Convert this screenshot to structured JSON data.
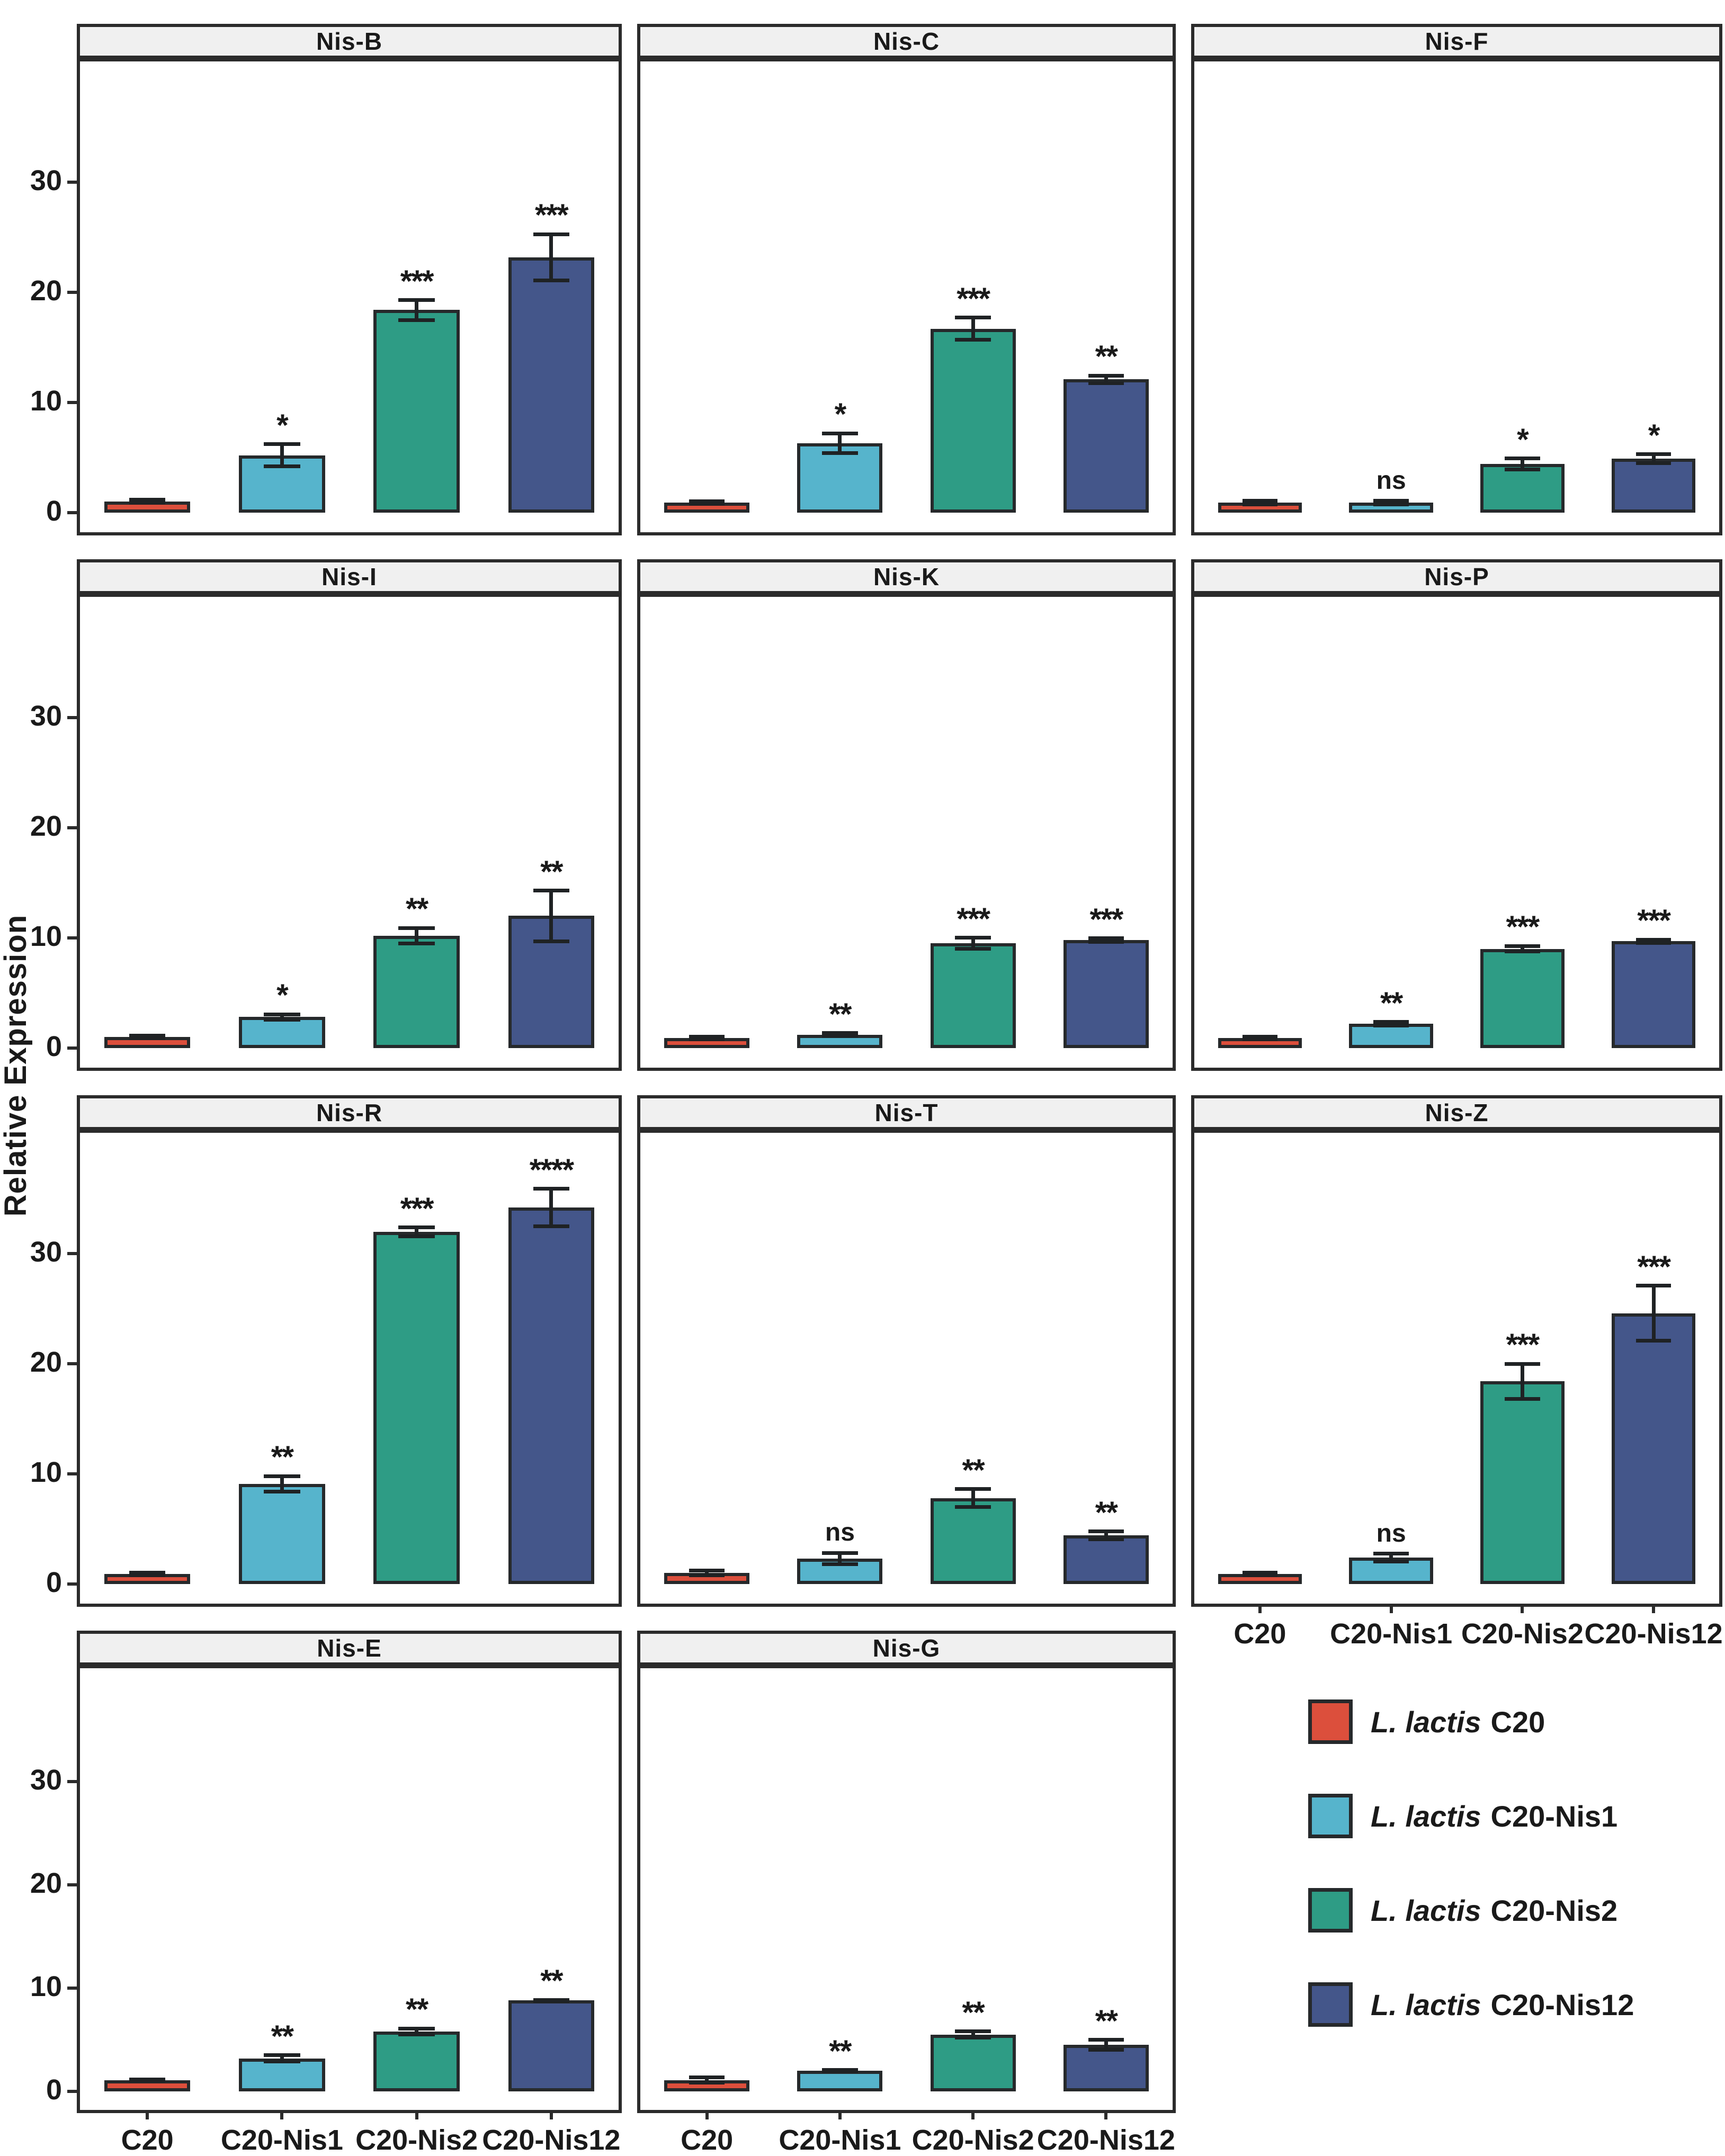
{
  "chart_data": {
    "type": "bar",
    "ylabel": "Relative Expression",
    "categories": [
      "C20",
      "C20-Nis1",
      "C20-Nis2",
      "C20-Nis12"
    ],
    "yticks": [
      0,
      10,
      20,
      30
    ],
    "ylim": [
      -1.8,
      41
    ],
    "grid": "off",
    "legend_position": "bottom-right-cell",
    "group_colors": [
      "#DC4F3C",
      "#56B4CC",
      "#2E9C85",
      "#44568A"
    ],
    "bar_outline_color": "#26292B",
    "panel_border_color": "#2B2B2B",
    "strip_bg_color": "#F0F0F0",
    "text_color": "#1A1A1A",
    "panels": [
      {
        "title": "Nis-B",
        "row": 0,
        "col": 0,
        "show_y_axis": true,
        "show_x_axis": false,
        "values": [
          1.0,
          5.2,
          18.4,
          23.2
        ],
        "errors": [
          0.15,
          1.0,
          0.9,
          2.1
        ],
        "sig": [
          "",
          "*",
          "***",
          "***"
        ]
      },
      {
        "title": "Nis-C",
        "row": 0,
        "col": 1,
        "show_y_axis": false,
        "show_x_axis": false,
        "values": [
          0.9,
          6.3,
          16.7,
          12.1
        ],
        "errors": [
          0.1,
          0.9,
          1.0,
          0.35
        ],
        "sig": [
          "",
          "*",
          "***",
          "**"
        ]
      },
      {
        "title": "Nis-F",
        "row": 0,
        "col": 2,
        "show_y_axis": false,
        "show_x_axis": false,
        "values": [
          0.9,
          0.9,
          4.4,
          4.9
        ],
        "errors": [
          0.15,
          0.15,
          0.5,
          0.4
        ],
        "sig": [
          "",
          "ns",
          "*",
          "*"
        ]
      },
      {
        "title": "Nis-I",
        "row": 1,
        "col": 0,
        "show_y_axis": true,
        "show_x_axis": false,
        "values": [
          1.0,
          2.8,
          10.2,
          12.0
        ],
        "errors": [
          0.12,
          0.25,
          0.7,
          2.3
        ],
        "sig": [
          "",
          "*",
          "**",
          "**"
        ]
      },
      {
        "title": "Nis-K",
        "row": 1,
        "col": 1,
        "show_y_axis": false,
        "show_x_axis": false,
        "values": [
          0.9,
          1.2,
          9.5,
          9.8
        ],
        "errors": [
          0.1,
          0.15,
          0.5,
          0.15
        ],
        "sig": [
          "",
          "**",
          "***",
          "***"
        ]
      },
      {
        "title": "Nis-P",
        "row": 1,
        "col": 2,
        "show_y_axis": false,
        "show_x_axis": false,
        "values": [
          0.9,
          2.2,
          9.0,
          9.7
        ],
        "errors": [
          0.1,
          0.15,
          0.25,
          0.15
        ],
        "sig": [
          "",
          "**",
          "***",
          "***"
        ]
      },
      {
        "title": "Nis-R",
        "row": 2,
        "col": 0,
        "show_y_axis": true,
        "show_x_axis": false,
        "values": [
          0.9,
          9.1,
          32.0,
          34.2
        ],
        "errors": [
          0.1,
          0.7,
          0.4,
          1.7
        ],
        "sig": [
          "",
          "**",
          "***",
          "****"
        ]
      },
      {
        "title": "Nis-T",
        "row": 2,
        "col": 1,
        "show_y_axis": false,
        "show_x_axis": false,
        "values": [
          1.0,
          2.3,
          7.8,
          4.4
        ],
        "errors": [
          0.2,
          0.5,
          0.8,
          0.35
        ],
        "sig": [
          "",
          "ns",
          "**",
          "**"
        ]
      },
      {
        "title": "Nis-Z",
        "row": 2,
        "col": 2,
        "show_y_axis": false,
        "show_x_axis": true,
        "values": [
          0.9,
          2.4,
          18.4,
          24.6
        ],
        "errors": [
          0.12,
          0.35,
          1.6,
          2.5
        ],
        "sig": [
          "",
          "ns",
          "***",
          "***"
        ]
      },
      {
        "title": "Nis-E",
        "row": 3,
        "col": 0,
        "show_y_axis": true,
        "show_x_axis": true,
        "values": [
          1.1,
          3.2,
          5.8,
          8.8
        ],
        "errors": [
          0.05,
          0.3,
          0.3,
          0.05
        ],
        "sig": [
          "",
          "**",
          "**",
          "**"
        ]
      },
      {
        "title": "Nis-G",
        "row": 3,
        "col": 1,
        "show_y_axis": false,
        "show_x_axis": true,
        "values": [
          1.1,
          2.0,
          5.5,
          4.5
        ],
        "errors": [
          0.25,
          0.05,
          0.3,
          0.5
        ],
        "sig": [
          "",
          "**",
          "**",
          "**"
        ]
      }
    ],
    "legend": [
      {
        "species": "L. lactis",
        "strain": "C20",
        "color": "#DC4F3C"
      },
      {
        "species": "L. lactis",
        "strain": "C20-Nis1",
        "color": "#56B4CC"
      },
      {
        "species": "L. lactis",
        "strain": "C20-Nis2",
        "color": "#2E9C85"
      },
      {
        "species": "L. lactis",
        "strain": "C20-Nis12",
        "color": "#44568A"
      }
    ]
  }
}
